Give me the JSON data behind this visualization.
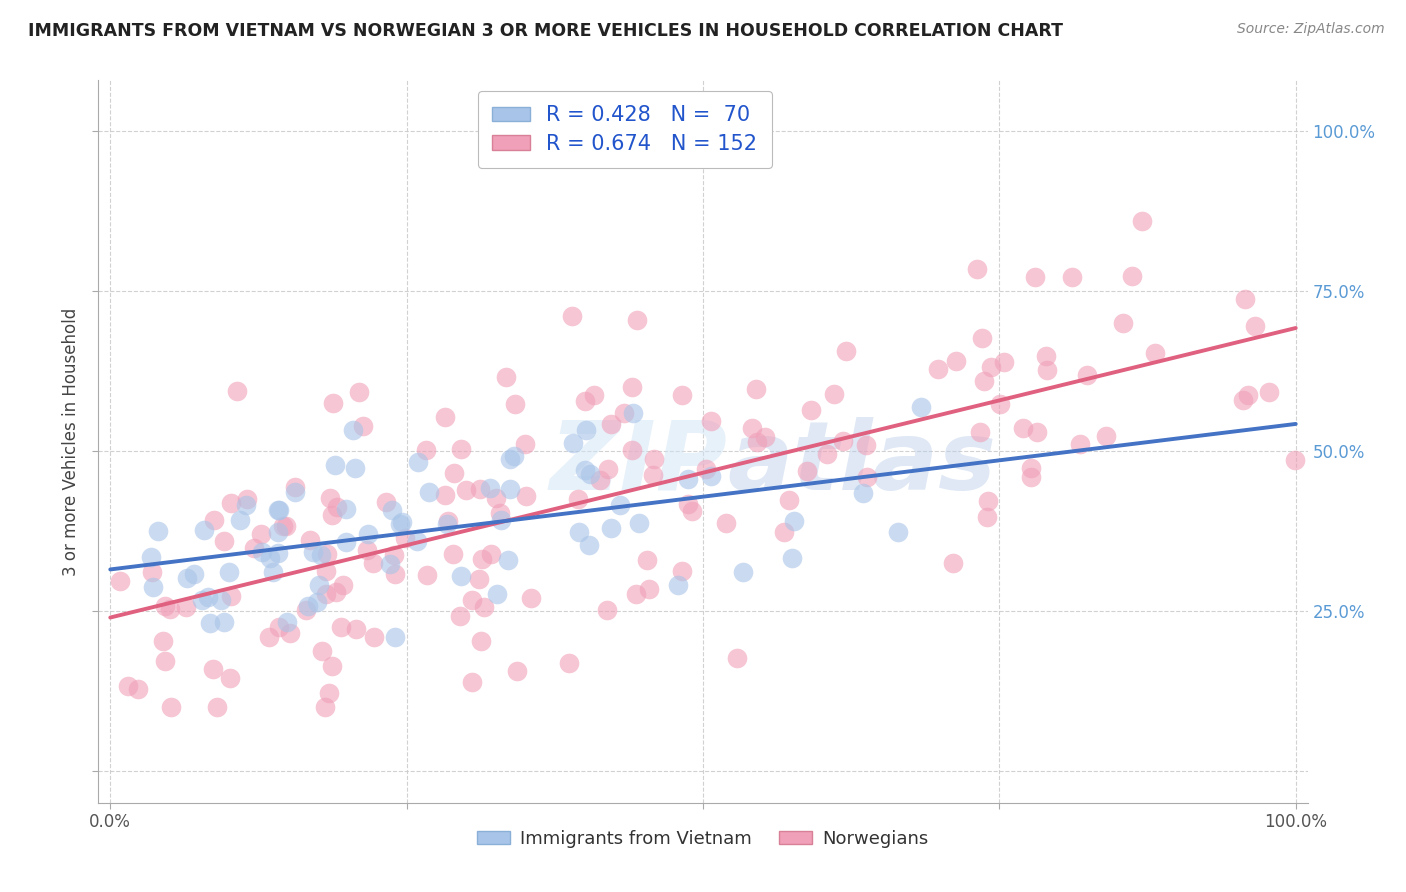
{
  "title": "IMMIGRANTS FROM VIETNAM VS NORWEGIAN 3 OR MORE VEHICLES IN HOUSEHOLD CORRELATION CHART",
  "source": "Source: ZipAtlas.com",
  "ylabel": "3 or more Vehicles in Household",
  "legend_blue_label": "Immigrants from Vietnam",
  "legend_pink_label": "Norwegians",
  "R_blue": 0.428,
  "N_blue": 70,
  "R_pink": 0.674,
  "N_pink": 152,
  "blue_scatter_color": "#A8C4E8",
  "pink_scatter_color": "#F0A0B8",
  "blue_line_color": "#4472C4",
  "pink_line_color": "#E06080",
  "watermark_color": "#C0D8F0",
  "background_color": "#ffffff",
  "grid_color": "#CCCCCC",
  "right_tick_color": "#5B9BD5",
  "blue_seed": 42,
  "pink_seed": 99
}
